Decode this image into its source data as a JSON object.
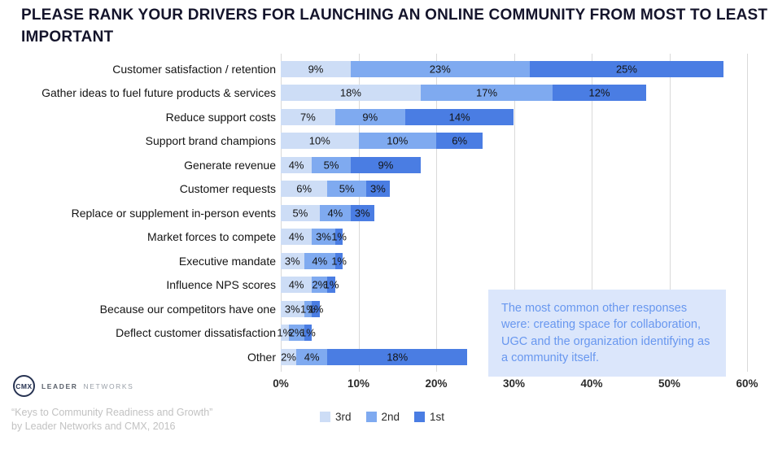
{
  "title": "PLEASE RANK YOUR DRIVERS FOR LAUNCHING AN ONLINE COMMUNITY FROM MOST TO LEAST IMPORTANT",
  "chart_data": {
    "type": "bar",
    "subtype": "horizontal_stacked",
    "x_max": 60,
    "x_ticks": [
      "0%",
      "10%",
      "20%",
      "30%",
      "40%",
      "50%",
      "60%"
    ],
    "grid": true,
    "legend_position": "bottom",
    "categories": [
      "Customer satisfaction / retention",
      "Gather ideas to fuel future products & services",
      "Reduce support costs",
      "Support brand champions",
      "Generate revenue",
      "Customer requests",
      "Replace or supplement in-person events",
      "Market forces to compete",
      "Executive mandate",
      "Influence NPS scores",
      "Because our competitors have one",
      "Deflect customer dissatisfaction",
      "Other"
    ],
    "series": [
      {
        "name": "3rd",
        "color": "#cdddf6",
        "values": [
          9,
          18,
          7,
          10,
          4,
          6,
          5,
          4,
          3,
          4,
          3,
          1,
          2
        ]
      },
      {
        "name": "2nd",
        "color": "#7faaf0",
        "values": [
          23,
          17,
          9,
          10,
          5,
          5,
          4,
          3,
          4,
          2,
          1,
          2,
          4
        ]
      },
      {
        "name": "1st",
        "color": "#4a7de3",
        "values": [
          25,
          12,
          14,
          6,
          9,
          3,
          3,
          1,
          1,
          1,
          1,
          1,
          18
        ]
      }
    ]
  },
  "annotation": {
    "text": "The most common other responses were: creating space for collaboration, UGC and the organization identifying as a community itself."
  },
  "branding": {
    "logo_text": "CMX",
    "brand_bold": "LEADER",
    "brand_light": "NETWORKS"
  },
  "footer": {
    "line1": "“Keys to Community Readiness and Growth”",
    "line2": "by Leader Networks and CMX, 2016"
  }
}
